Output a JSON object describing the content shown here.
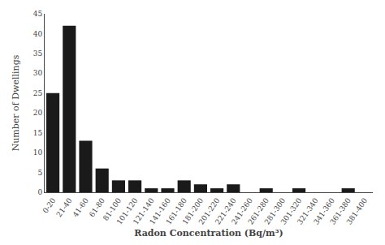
{
  "chart_data": {
    "type": "bar",
    "categories": [
      "0-20",
      "21-40",
      "41-60",
      "61-80",
      "81-100",
      "101-120",
      "121-140",
      "141-160",
      "161-180",
      "181-200",
      "201-220",
      "221-240",
      "241-260",
      "261-280",
      "281-300",
      "301-320",
      "321-340",
      "341-360",
      "361-380",
      "381-400"
    ],
    "values": [
      25,
      42,
      13,
      6,
      3,
      3,
      1,
      1,
      3,
      2,
      1,
      2,
      0,
      1,
      0,
      1,
      0,
      0,
      1,
      0
    ],
    "color": "#1a1a1a",
    "xlabel": "Radon Concentration (Bq/m³)",
    "ylabel": "Number of Dwellings",
    "ylim": [
      0,
      45
    ],
    "yticks": [
      0,
      5,
      10,
      15,
      20,
      25,
      30,
      35,
      40,
      45
    ],
    "grid": false
  }
}
